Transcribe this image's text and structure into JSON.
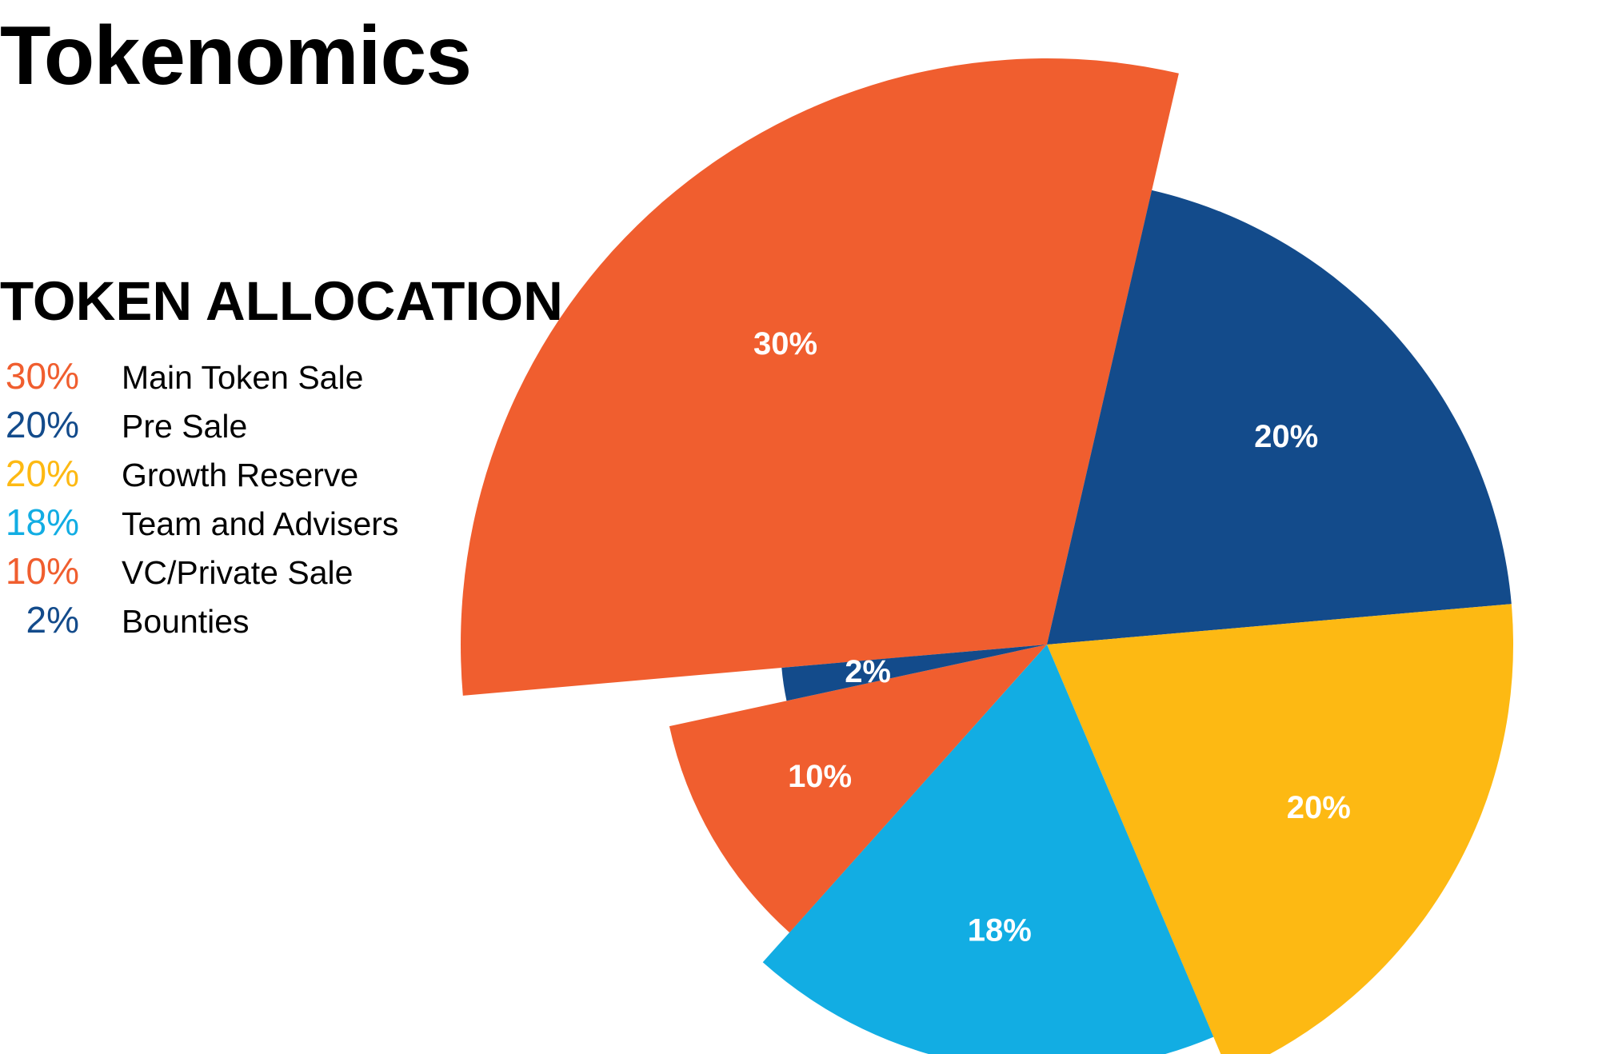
{
  "title": "Tokenomics",
  "subtitle": "TOKEN ALLOCATION",
  "chart_data": {
    "type": "pie",
    "variant": "variable-radius (nightingale-style)",
    "title": "Tokenomics",
    "subtitle": "TOKEN ALLOCATION",
    "legend_position": "left",
    "slices": [
      {
        "label": "Main Token Sale",
        "value": 30,
        "display": "30%",
        "color": "#f05e2f"
      },
      {
        "label": "Pre Sale",
        "value": 20,
        "display": "20%",
        "color": "#134b8b"
      },
      {
        "label": "Growth Reserve",
        "value": 20,
        "display": "20%",
        "color": "#fdb913"
      },
      {
        "label": "Team and Advisers",
        "value": 18,
        "display": "18%",
        "color": "#12ade3"
      },
      {
        "label": "VC/Private Sale",
        "value": 10,
        "display": "10%",
        "color": "#f05e2f"
      },
      {
        "label": "Bounties",
        "value": 2,
        "display": "2%",
        "color": "#134b8b"
      }
    ]
  }
}
